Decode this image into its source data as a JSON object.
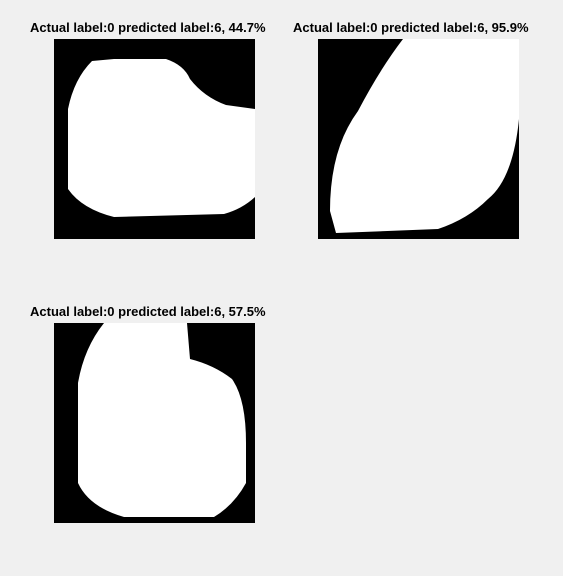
{
  "panels": [
    {
      "title": "Actual label:0 predicted label:6, 44.7%",
      "actual_label": 0,
      "predicted_label": 6,
      "confidence_percent": 44.7
    },
    {
      "title": "Actual label:0 predicted label:6, 95.9%",
      "actual_label": 0,
      "predicted_label": 6,
      "confidence_percent": 95.9
    },
    {
      "title": "Actual label:0 predicted label:6, 57.5%",
      "actual_label": 0,
      "predicted_label": 6,
      "confidence_percent": 57.5
    }
  ]
}
